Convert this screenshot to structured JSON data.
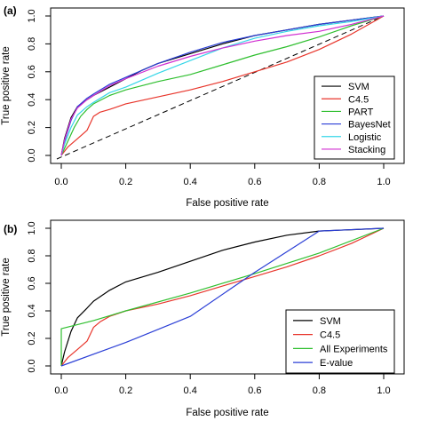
{
  "chart_data": [
    {
      "panel_label": "(a)",
      "type": "line",
      "xlabel": "False positive rate",
      "ylabel": "True positive rate",
      "xlim": [
        0,
        1
      ],
      "ylim": [
        0,
        1
      ],
      "x_ticks": [
        "0.0",
        "0.2",
        "0.4",
        "0.6",
        "0.8",
        "1.0"
      ],
      "y_ticks": [
        "0.0",
        "0.2",
        "0.4",
        "0.6",
        "0.8",
        "1.0"
      ],
      "grid": false,
      "legend_position": "bottom-right",
      "diagonal_reference": true,
      "series": [
        {
          "name": "SVM",
          "color": "#000000",
          "points": [
            [
              0,
              0
            ],
            [
              0.01,
              0.12
            ],
            [
              0.03,
              0.27
            ],
            [
              0.05,
              0.35
            ],
            [
              0.08,
              0.4
            ],
            [
              0.1,
              0.43
            ],
            [
              0.15,
              0.49
            ],
            [
              0.2,
              0.55
            ],
            [
              0.25,
              0.61
            ],
            [
              0.3,
              0.66
            ],
            [
              0.4,
              0.73
            ],
            [
              0.5,
              0.8
            ],
            [
              0.6,
              0.86
            ],
            [
              0.7,
              0.9
            ],
            [
              0.8,
              0.94
            ],
            [
              0.9,
              0.97
            ],
            [
              1,
              1
            ]
          ]
        },
        {
          "name": "C4.5",
          "color": "#e8352b",
          "points": [
            [
              0,
              0
            ],
            [
              0.02,
              0.06
            ],
            [
              0.05,
              0.12
            ],
            [
              0.08,
              0.18
            ],
            [
              0.1,
              0.28
            ],
            [
              0.12,
              0.31
            ],
            [
              0.15,
              0.33
            ],
            [
              0.2,
              0.37
            ],
            [
              0.3,
              0.42
            ],
            [
              0.4,
              0.47
            ],
            [
              0.5,
              0.53
            ],
            [
              0.6,
              0.6
            ],
            [
              0.7,
              0.67
            ],
            [
              0.8,
              0.76
            ],
            [
              0.9,
              0.87
            ],
            [
              1,
              1
            ]
          ]
        },
        {
          "name": "PART",
          "color": "#2fbf2f",
          "points": [
            [
              0,
              0
            ],
            [
              0.02,
              0.1
            ],
            [
              0.04,
              0.2
            ],
            [
              0.06,
              0.28
            ],
            [
              0.08,
              0.33
            ],
            [
              0.1,
              0.37
            ],
            [
              0.15,
              0.43
            ],
            [
              0.2,
              0.47
            ],
            [
              0.3,
              0.53
            ],
            [
              0.4,
              0.58
            ],
            [
              0.5,
              0.65
            ],
            [
              0.6,
              0.72
            ],
            [
              0.7,
              0.78
            ],
            [
              0.8,
              0.85
            ],
            [
              0.9,
              0.93
            ],
            [
              1,
              1
            ]
          ]
        },
        {
          "name": "BayesNet",
          "color": "#2b3fd6",
          "points": [
            [
              0,
              0
            ],
            [
              0.01,
              0.1
            ],
            [
              0.03,
              0.25
            ],
            [
              0.05,
              0.35
            ],
            [
              0.08,
              0.41
            ],
            [
              0.1,
              0.44
            ],
            [
              0.15,
              0.51
            ],
            [
              0.2,
              0.56
            ],
            [
              0.3,
              0.66
            ],
            [
              0.4,
              0.74
            ],
            [
              0.5,
              0.81
            ],
            [
              0.6,
              0.86
            ],
            [
              0.7,
              0.9
            ],
            [
              0.8,
              0.94
            ],
            [
              0.9,
              0.97
            ],
            [
              1,
              1
            ]
          ]
        },
        {
          "name": "Logistic",
          "color": "#36d6e8",
          "points": [
            [
              0,
              0
            ],
            [
              0.01,
              0.08
            ],
            [
              0.03,
              0.2
            ],
            [
              0.05,
              0.29
            ],
            [
              0.08,
              0.35
            ],
            [
              0.1,
              0.38
            ],
            [
              0.15,
              0.45
            ],
            [
              0.2,
              0.49
            ],
            [
              0.3,
              0.59
            ],
            [
              0.4,
              0.68
            ],
            [
              0.5,
              0.77
            ],
            [
              0.6,
              0.84
            ],
            [
              0.7,
              0.89
            ],
            [
              0.8,
              0.93
            ],
            [
              0.9,
              0.96
            ],
            [
              1,
              1
            ]
          ]
        },
        {
          "name": "Stacking",
          "color": "#d12fd1",
          "points": [
            [
              0,
              0
            ],
            [
              0.01,
              0.11
            ],
            [
              0.03,
              0.26
            ],
            [
              0.05,
              0.34
            ],
            [
              0.08,
              0.4
            ],
            [
              0.1,
              0.43
            ],
            [
              0.15,
              0.5
            ],
            [
              0.2,
              0.55
            ],
            [
              0.3,
              0.64
            ],
            [
              0.4,
              0.71
            ],
            [
              0.5,
              0.77
            ],
            [
              0.6,
              0.82
            ],
            [
              0.7,
              0.86
            ],
            [
              0.8,
              0.89
            ],
            [
              0.9,
              0.94
            ],
            [
              1,
              1
            ]
          ]
        }
      ]
    },
    {
      "panel_label": "(b)",
      "type": "line",
      "xlabel": "False positive rate",
      "ylabel": "True positive rate",
      "xlim": [
        0,
        1
      ],
      "ylim": [
        0,
        1
      ],
      "x_ticks": [
        "0.0",
        "0.2",
        "0.4",
        "0.6",
        "0.8",
        "1.0"
      ],
      "y_ticks": [
        "0.0",
        "0.2",
        "0.4",
        "0.6",
        "0.8",
        "1.0"
      ],
      "grid": false,
      "legend_position": "bottom-right",
      "diagonal_reference": false,
      "series": [
        {
          "name": "SVM",
          "color": "#000000",
          "points": [
            [
              0,
              0
            ],
            [
              0.01,
              0.1
            ],
            [
              0.03,
              0.25
            ],
            [
              0.05,
              0.35
            ],
            [
              0.08,
              0.42
            ],
            [
              0.1,
              0.47
            ],
            [
              0.15,
              0.55
            ],
            [
              0.2,
              0.61
            ],
            [
              0.3,
              0.68
            ],
            [
              0.4,
              0.76
            ],
            [
              0.5,
              0.84
            ],
            [
              0.6,
              0.9
            ],
            [
              0.7,
              0.95
            ],
            [
              0.8,
              0.98
            ],
            [
              0.9,
              0.99
            ],
            [
              1,
              1
            ]
          ]
        },
        {
          "name": "C4.5",
          "color": "#e8352b",
          "points": [
            [
              0,
              0
            ],
            [
              0.02,
              0.06
            ],
            [
              0.05,
              0.12
            ],
            [
              0.08,
              0.18
            ],
            [
              0.1,
              0.28
            ],
            [
              0.12,
              0.32
            ],
            [
              0.15,
              0.36
            ],
            [
              0.2,
              0.4
            ],
            [
              0.3,
              0.45
            ],
            [
              0.4,
              0.51
            ],
            [
              0.5,
              0.58
            ],
            [
              0.6,
              0.65
            ],
            [
              0.7,
              0.72
            ],
            [
              0.8,
              0.8
            ],
            [
              0.9,
              0.89
            ],
            [
              1,
              1
            ]
          ]
        },
        {
          "name": "All Experiments",
          "color": "#2fbf2f",
          "points": [
            [
              0,
              0
            ],
            [
              0,
              0.27
            ],
            [
              0.1,
              0.33
            ],
            [
              0.2,
              0.4
            ],
            [
              0.4,
              0.53
            ],
            [
              0.6,
              0.67
            ],
            [
              0.8,
              0.82
            ],
            [
              1,
              1
            ]
          ]
        },
        {
          "name": "E-value",
          "color": "#2b3fd6",
          "points": [
            [
              0,
              0
            ],
            [
              0.2,
              0.17
            ],
            [
              0.4,
              0.36
            ],
            [
              0.6,
              0.68
            ],
            [
              0.8,
              0.98
            ],
            [
              1,
              1
            ]
          ]
        }
      ]
    }
  ]
}
